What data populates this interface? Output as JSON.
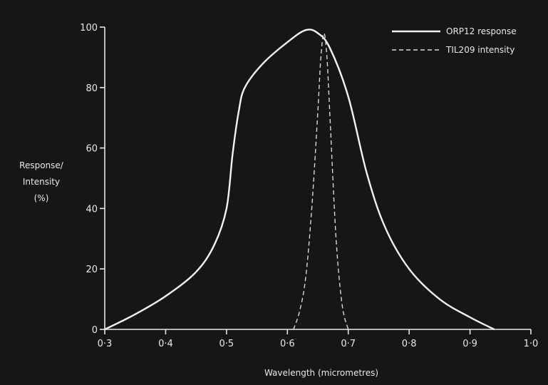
{
  "chart_data": {
    "type": "line",
    "title": "",
    "xlabel": "Wavelength (micrometres)",
    "ylabel_lines": [
      "Response/",
      "Intensity",
      "(%)"
    ],
    "xlim": [
      0.3,
      1.0
    ],
    "ylim": [
      0,
      100
    ],
    "x_ticks": [
      0.3,
      0.4,
      0.5,
      0.6,
      0.7,
      0.8,
      0.9,
      1.0
    ],
    "x_tick_labels": [
      "0·3",
      "0·4",
      "0·5",
      "0·6",
      "0·7",
      "0·8",
      "0·9",
      "1·0"
    ],
    "y_ticks": [
      0,
      20,
      40,
      60,
      80,
      100
    ],
    "y_tick_labels": [
      "0",
      "20",
      "40",
      "60",
      "80",
      "100"
    ],
    "grid": false,
    "legend_position": "top-right",
    "series": [
      {
        "name": "ORP12 response",
        "style": "solid",
        "color": "#f2f2f2",
        "x": [
          0.3,
          0.35,
          0.4,
          0.45,
          0.48,
          0.5,
          0.51,
          0.52,
          0.53,
          0.56,
          0.6,
          0.63,
          0.65,
          0.67,
          0.7,
          0.73,
          0.76,
          0.8,
          0.85,
          0.9,
          0.94
        ],
        "y": [
          0,
          5,
          11,
          19,
          28,
          40,
          58,
          72,
          80,
          88,
          95,
          99,
          98,
          93,
          77,
          52,
          34,
          20,
          10,
          4,
          0
        ]
      },
      {
        "name": "TIL209 intensity",
        "style": "dashed",
        "color": "#d8d8d8",
        "x": [
          0.61,
          0.62,
          0.63,
          0.64,
          0.65,
          0.655,
          0.66,
          0.665,
          0.67,
          0.68,
          0.69,
          0.7
        ],
        "y": [
          0,
          6,
          17,
          40,
          72,
          90,
          98,
          90,
          70,
          30,
          8,
          0
        ]
      }
    ]
  }
}
